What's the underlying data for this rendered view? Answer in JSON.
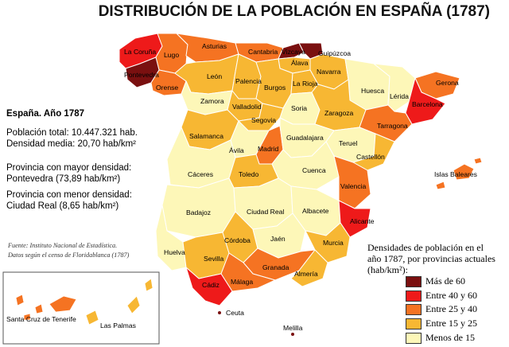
{
  "title": "DISTRIBUCIÓN DE LA POBLACIÓN EN ESPAÑA (1787)",
  "info": {
    "heading": "España. Año 1787",
    "total": "Población total: 10.447.321 hab.",
    "density": "Densidad media: 20,70 hab/km²",
    "max_label": "Provincia con mayor densidad:",
    "max_value": "Pontevedra (73,89 hab/km²)",
    "min_label": "Provincia con menor densidad:",
    "min_value": "Ciudad Real (8,65 hab/km²)"
  },
  "source": {
    "line1": "Fuente: Instituto Nacional de Estadística.",
    "line2": "Datos según el censo de Floridablanca (1787)"
  },
  "legend": {
    "title_line1": "Densidades de población en el",
    "title_line2": "año 1787, por provincias actuales",
    "title_line3": "(hab/km²):",
    "items": [
      {
        "label": "Más de 60",
        "color": "#7a1010"
      },
      {
        "label": "Entre 40 y 60",
        "color": "#ee1a1a"
      },
      {
        "label": "Entre 25 y 40",
        "color": "#f57322"
      },
      {
        "label": "Entre 15 y 25",
        "color": "#f7b733"
      },
      {
        "label": "Menos de 15",
        "color": "#fdf7b8"
      }
    ]
  },
  "provinces": {
    "la_coruna": "La Coruña",
    "lugo": "Lugo",
    "pontevedra": "Pontevedra",
    "orense": "Orense",
    "asturias": "Asturias",
    "cantabria": "Cantabria",
    "vizcaya": "Vizcaya",
    "guipuzcoa": "Guipúzcoa",
    "alava": "Álava",
    "navarra": "Navarra",
    "leon": "León",
    "palencia": "Palencia",
    "burgos": "Burgos",
    "la_rioja": "La Rioja",
    "huesca": "Huesca",
    "lerida": "Lérida",
    "gerona": "Gerona",
    "barcelona": "Barcelona",
    "zamora": "Zamora",
    "valladolid": "Valladolid",
    "soria": "Soria",
    "zaragoza": "Zaragoza",
    "segovia": "Segovia",
    "tarragona": "Tarragona",
    "salamanca": "Salamanca",
    "avila": "Ávila",
    "madrid": "Madrid",
    "guadalajara": "Guadalajara",
    "teruel": "Teruel",
    "castellon": "Castellón",
    "caceres": "Cáceres",
    "toledo": "Toledo",
    "cuenca": "Cuenca",
    "valencia": "Valencia",
    "badajoz": "Badajoz",
    "ciudad_real": "Ciudad Real",
    "albacete": "Albacete",
    "alicante": "Alicante",
    "huelva": "Huelva",
    "cordoba": "Córdoba",
    "jaen": "Jaén",
    "murcia": "Murcia",
    "sevilla": "Sevilla",
    "granada": "Granada",
    "almeria": "Almería",
    "cadiz": "Cádiz",
    "malaga": "Málaga",
    "baleares": "Islas Baleares",
    "santa_cruz": "Santa Cruz de Tenerife",
    "las_palmas": "Las Palmas",
    "ceuta": "Ceuta",
    "melilla": "Melilla"
  }
}
